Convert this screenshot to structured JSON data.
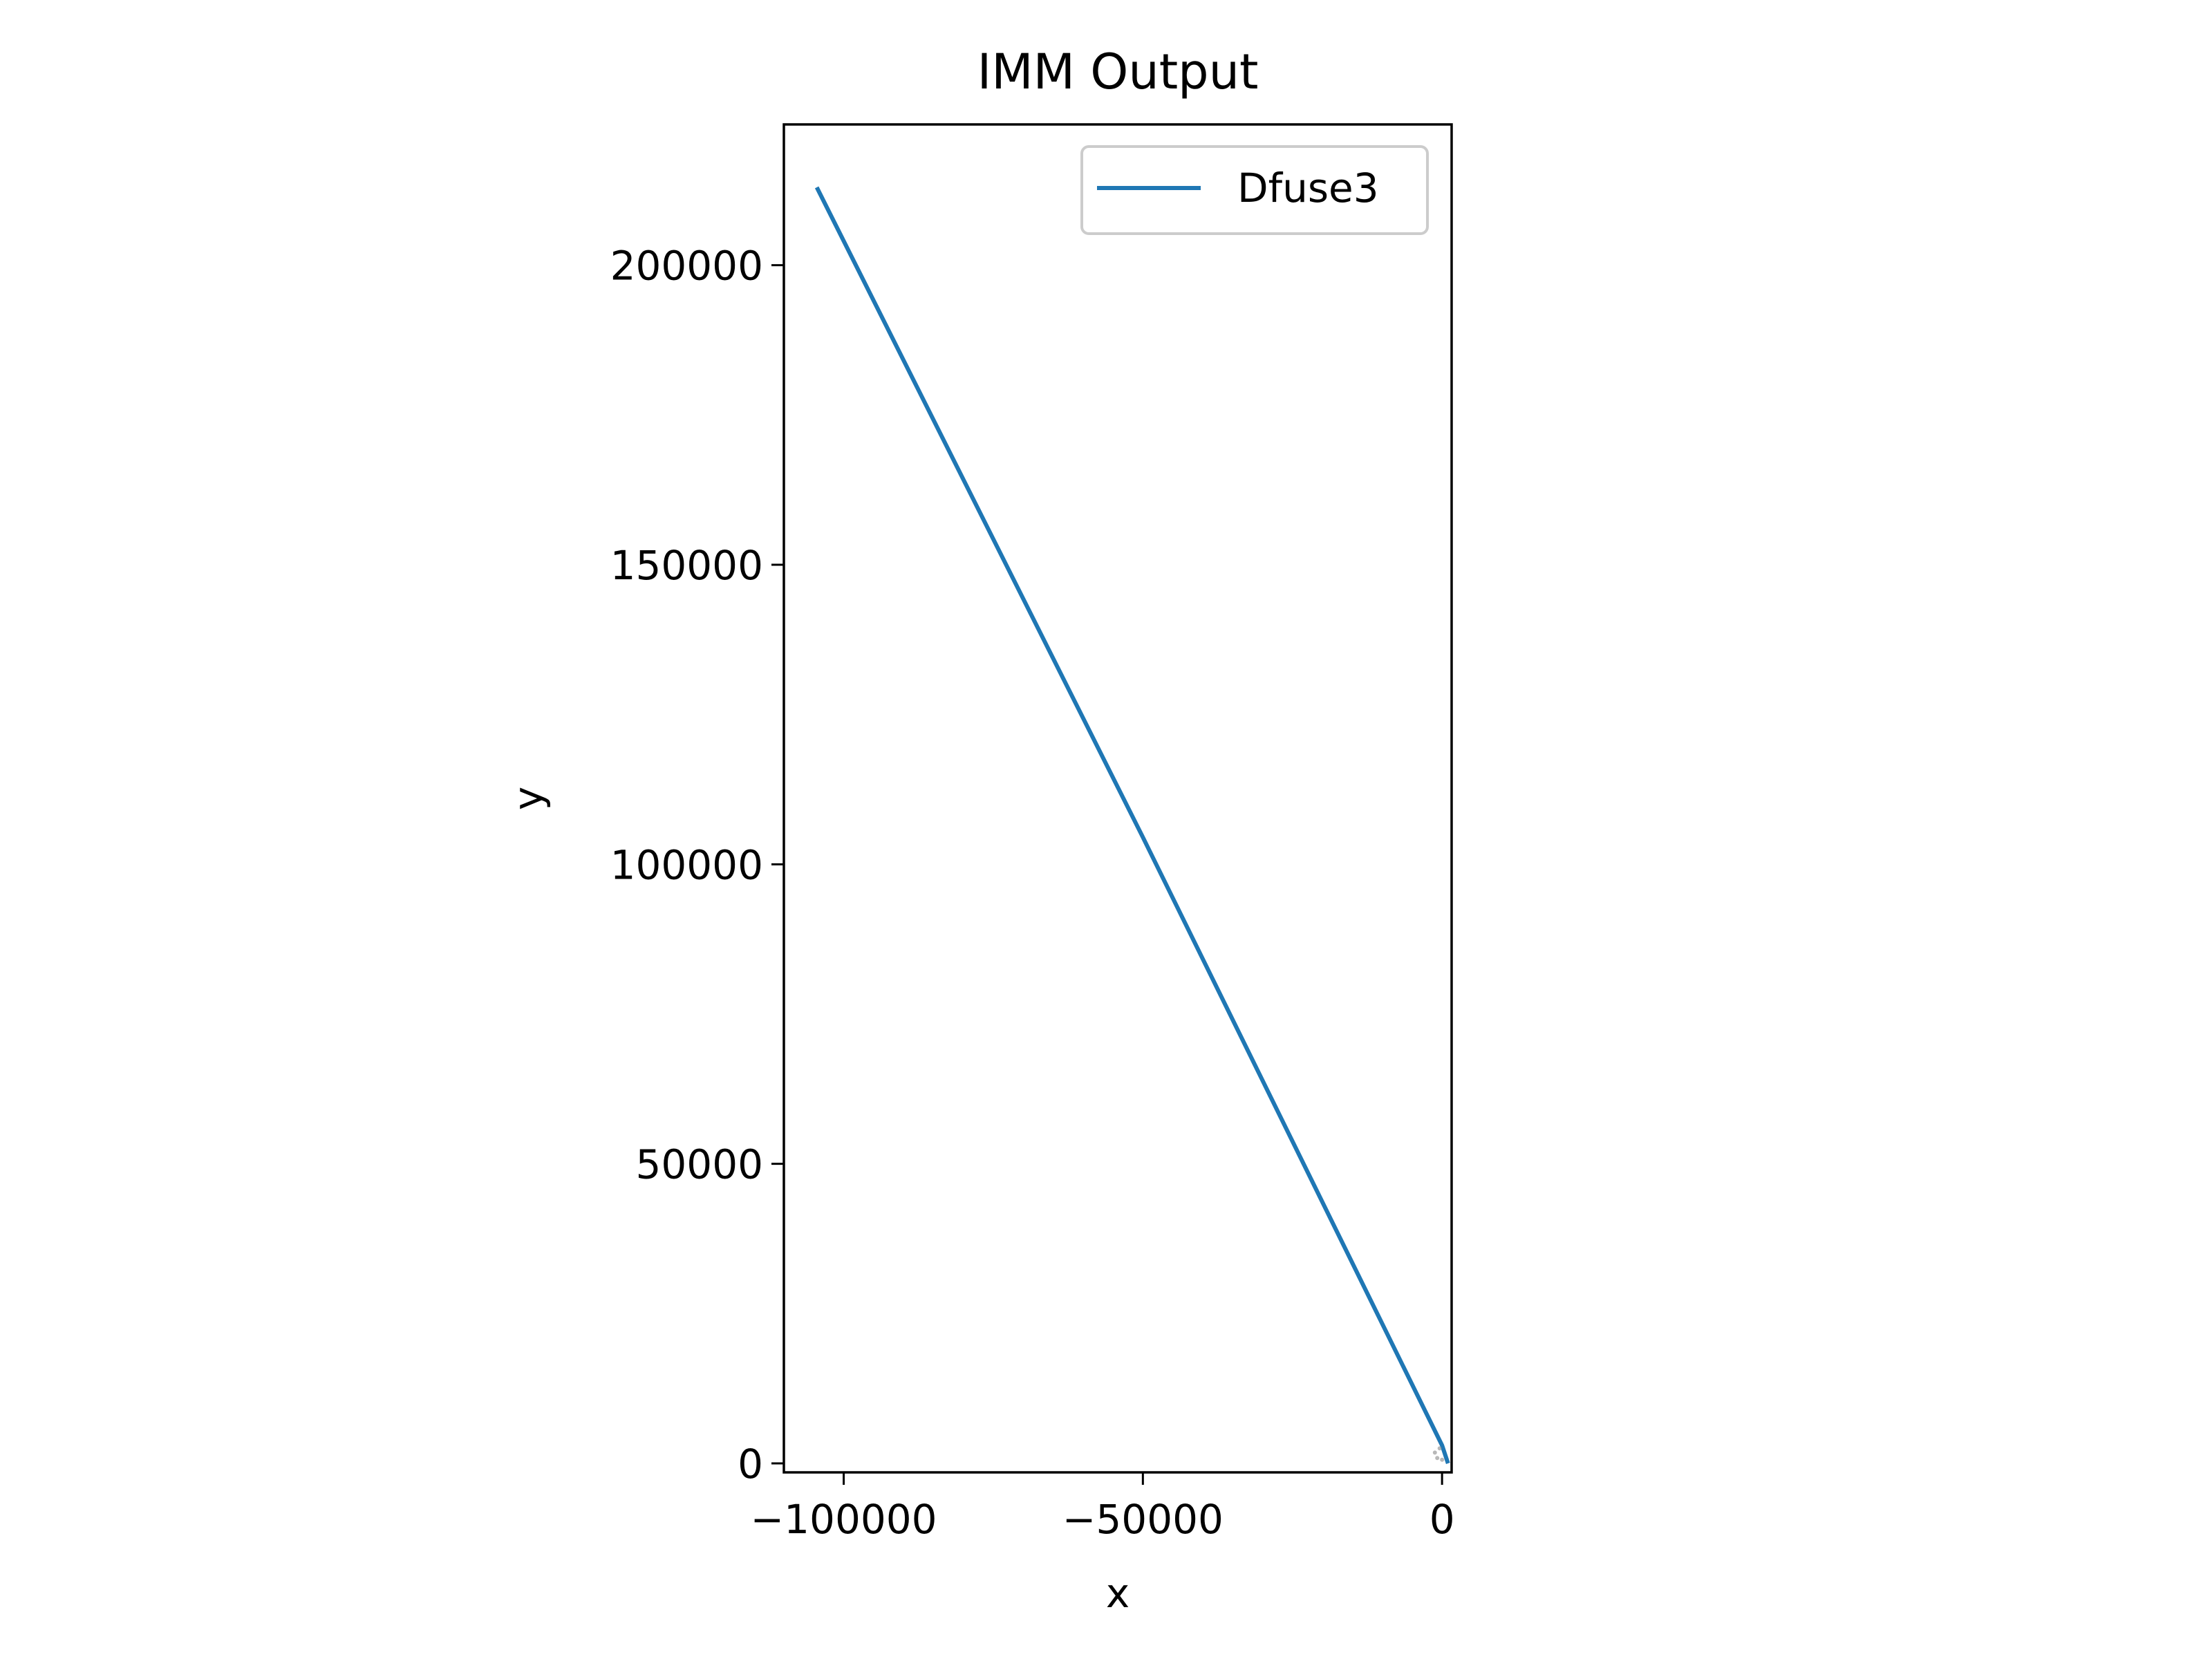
{
  "chart_data": {
    "type": "line",
    "title": "IMM Output",
    "xlabel": "x",
    "ylabel": "y",
    "xlim": [
      -110000,
      1600
    ],
    "ylim": [
      -1500,
      223500
    ],
    "xticks": [
      {
        "value": -100000,
        "label": "−100000"
      },
      {
        "value": -50000,
        "label": "−50000"
      },
      {
        "value": 0,
        "label": "0"
      }
    ],
    "yticks": [
      {
        "value": 0,
        "label": "0"
      },
      {
        "value": 50000,
        "label": "50000"
      },
      {
        "value": 100000,
        "label": "100000"
      },
      {
        "value": 150000,
        "label": "150000"
      },
      {
        "value": 200000,
        "label": "200000"
      }
    ],
    "grid": false,
    "legend_position": "top-right",
    "series": [
      {
        "name": "Dfuse3",
        "color": "#1f77b4",
        "x": [
          -104500,
          -50000,
          0,
          1000
        ],
        "y": [
          213000,
          104500,
          3000,
          0
        ]
      }
    ],
    "markers": {
      "color": "#888888",
      "x": [
        -1200,
        -800,
        -400,
        0
      ],
      "y": [
        1800,
        900,
        2500,
        600
      ]
    }
  }
}
